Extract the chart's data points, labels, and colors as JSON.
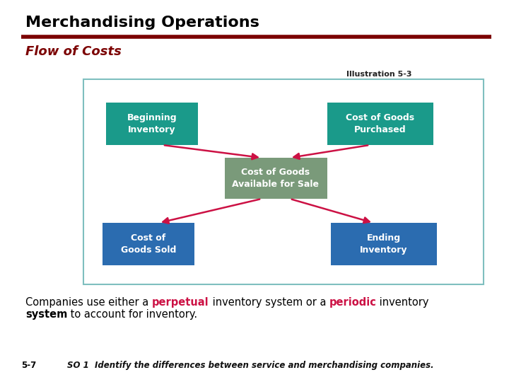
{
  "title": "Merchandising Operations",
  "subtitle": "Flow of Costs",
  "illustration_label": "Illustration 5-3",
  "title_color": "#000000",
  "subtitle_color": "#7B0000",
  "title_line_color": "#7B0000",
  "bg_color": "#FFFFFF",
  "diagram_border_color": "#7FBFBF",
  "teal_box_color": "#1A9A8A",
  "blue_box_color": "#2B6CB0",
  "center_box_color": "#7A9A7A",
  "box_text_color": "#FFFFFF",
  "arrow_color": "#CC1144",
  "boxes": {
    "top_left": "Beginning\nInventory",
    "top_right": "Cost of Goods\nPurchased",
    "center": "Cost of Goods\nAvailable for Sale",
    "bottom_left": "Cost of\nGoods Sold",
    "bottom_right": "Ending\nInventory"
  },
  "footer_left": "5-7",
  "footer_text": "SO 1  Identify the differences between service and merchandising companies."
}
